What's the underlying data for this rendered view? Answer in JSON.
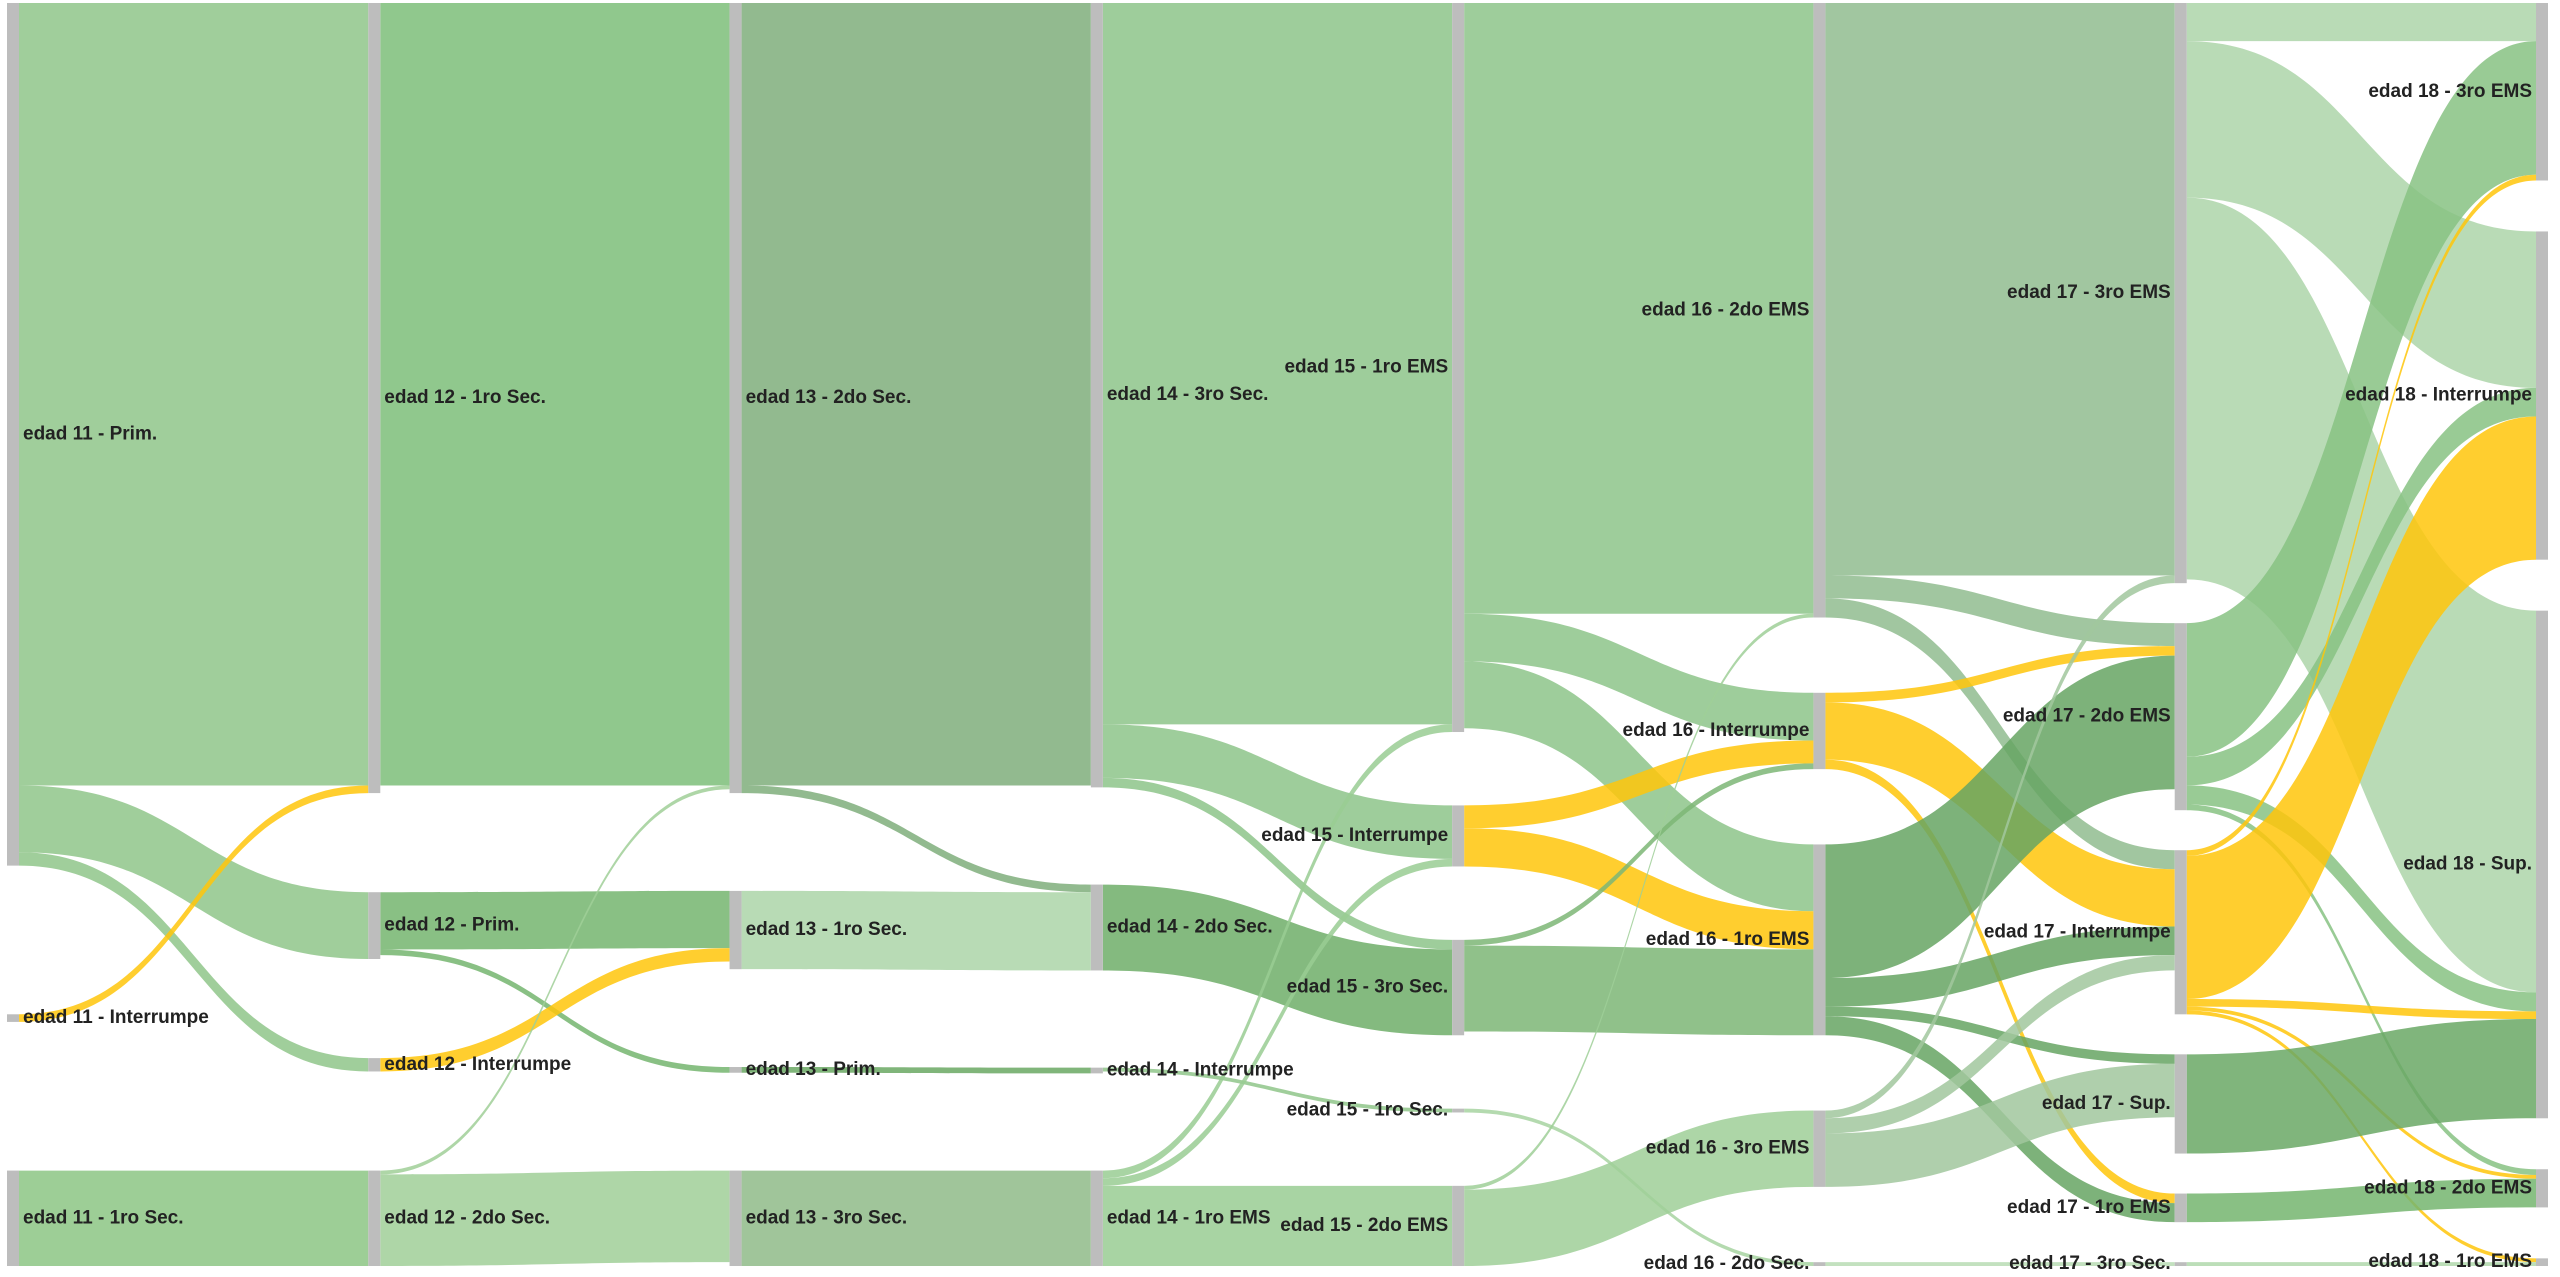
{
  "chart_data": {
    "type": "sankey",
    "nodes": [
      {
        "label": "edad 11 - Prim.",
        "color": "#8fc58a"
      },
      {
        "label": "edad 11 - Interrumpe",
        "color": "#ffc60b"
      },
      {
        "label": "edad 11 - 1ro Sec.",
        "color": "#8cc584"
      },
      {
        "label": "edad 12 - 1ro Sec.",
        "color": "#7dbe79"
      },
      {
        "label": "edad 12 - Prim.",
        "color": "#74b56e"
      },
      {
        "label": "edad 12 - Interrumpe",
        "color": "#ffc60b"
      },
      {
        "label": "edad 12 - 2do Sec.",
        "color": "#a0cf98"
      },
      {
        "label": "edad 13 - 2do Sec.",
        "color": "#7fae7b"
      },
      {
        "label": "edad 13 - 1ro Sec.",
        "color": "#acd5a8"
      },
      {
        "label": "edad 13 - Prim.",
        "color": "#6aa863"
      },
      {
        "label": "edad 13 - 3ro Sec.",
        "color": "#8fbb88"
      },
      {
        "label": "edad 14 - 3ro Sec.",
        "color": "#8dc48a"
      },
      {
        "label": "edad 14 - 2do Sec.",
        "color": "#6fae68"
      },
      {
        "label": "edad 14 - Interrumpe",
        "color": "#8fc58a"
      },
      {
        "label": "edad 14 - 1ro EMS",
        "color": "#99cc93"
      },
      {
        "label": "edad 15 - 1ro EMS",
        "color": "#8dc48a"
      },
      {
        "label": "edad 15 - Interrumpe",
        "color": "#ffc60b"
      },
      {
        "label": "edad 15 - 3ro Sec.",
        "color": "#7cb676"
      },
      {
        "label": "edad 15 - 1ro Sec.",
        "color": "#a7d3a1"
      },
      {
        "label": "edad 15 - 2do EMS",
        "color": "#9fcf98"
      },
      {
        "label": "edad 16 - 2do EMS",
        "color": "#91bc8f"
      },
      {
        "label": "edad 16 - Interrumpe",
        "color": "#ffc60b"
      },
      {
        "label": "edad 16 - 1ro EMS",
        "color": "#66a463"
      },
      {
        "label": "edad 16 - 3ro EMS",
        "color": "#a1c79d"
      },
      {
        "label": "edad 16 - 2do Sec.",
        "color": "#b9dcb4"
      },
      {
        "label": "edad 17 - 3ro EMS",
        "color": "#add5a9"
      },
      {
        "label": "edad 17 - 2do EMS",
        "color": "#87c282"
      },
      {
        "label": "edad 17 - Interrumpe",
        "color": "#ffc60b"
      },
      {
        "label": "edad 17 - Sup.",
        "color": "#6aa865"
      },
      {
        "label": "edad 17 - 1ro EMS",
        "color": "#74b56f"
      },
      {
        "label": "edad 17 - 3ro Sec.",
        "color": "#b0d8ab"
      },
      {
        "label": "edad 18 - 3ro EMS",
        "color": "#9cc998"
      },
      {
        "label": "edad 18 - Interrumpe",
        "color": "#ffc60b"
      },
      {
        "label": "edad 18 - Sup.",
        "color": "#96c991"
      },
      {
        "label": "edad 18 - 2do EMS",
        "color": "#8cc587"
      },
      {
        "label": "edad 18 - 1ro EMS",
        "color": "#ffc60b"
      }
    ],
    "links": [
      {
        "source": 0,
        "target": 3,
        "value": 410
      },
      {
        "source": 0,
        "target": 4,
        "value": 35
      },
      {
        "source": 0,
        "target": 5,
        "value": 7
      },
      {
        "source": 1,
        "target": 3,
        "value": 4
      },
      {
        "source": 2,
        "target": 6,
        "value": 50
      },
      {
        "source": 3,
        "target": 7,
        "value": 410
      },
      {
        "source": 4,
        "target": 8,
        "value": 30
      },
      {
        "source": 4,
        "target": 9,
        "value": 3
      },
      {
        "source": 5,
        "target": 8,
        "value": 7
      },
      {
        "source": 6,
        "target": 10,
        "value": 48
      },
      {
        "source": 6,
        "target": 7,
        "value": 2
      },
      {
        "source": 7,
        "target": 11,
        "value": 410
      },
      {
        "source": 7,
        "target": 12,
        "value": 4
      },
      {
        "source": 8,
        "target": 12,
        "value": 41
      },
      {
        "source": 9,
        "target": 13,
        "value": 3
      },
      {
        "source": 10,
        "target": 14,
        "value": 50
      },
      {
        "source": 11,
        "target": 15,
        "value": 378
      },
      {
        "source": 11,
        "target": 16,
        "value": 28
      },
      {
        "source": 11,
        "target": 17,
        "value": 5
      },
      {
        "source": 12,
        "target": 17,
        "value": 45
      },
      {
        "source": 13,
        "target": 18,
        "value": 2
      },
      {
        "source": 14,
        "target": 19,
        "value": 42
      },
      {
        "source": 14,
        "target": 15,
        "value": 4
      },
      {
        "source": 14,
        "target": 16,
        "value": 4
      },
      {
        "source": 15,
        "target": 20,
        "value": 320
      },
      {
        "source": 15,
        "target": 21,
        "value": 25
      },
      {
        "source": 15,
        "target": 22,
        "value": 35
      },
      {
        "source": 16,
        "target": 21,
        "value": 12
      },
      {
        "source": 16,
        "target": 22,
        "value": 20
      },
      {
        "source": 17,
        "target": 22,
        "value": 45
      },
      {
        "source": 17,
        "target": 21,
        "value": 3
      },
      {
        "source": 18,
        "target": 24,
        "value": 2
      },
      {
        "source": 19,
        "target": 23,
        "value": 40
      },
      {
        "source": 19,
        "target": 20,
        "value": 2
      },
      {
        "source": 20,
        "target": 25,
        "value": 300
      },
      {
        "source": 20,
        "target": 26,
        "value": 12
      },
      {
        "source": 20,
        "target": 27,
        "value": 10
      },
      {
        "source": 21,
        "target": 26,
        "value": 5
      },
      {
        "source": 21,
        "target": 27,
        "value": 30
      },
      {
        "source": 21,
        "target": 29,
        "value": 5
      },
      {
        "source": 22,
        "target": 26,
        "value": 70
      },
      {
        "source": 22,
        "target": 27,
        "value": 15
      },
      {
        "source": 22,
        "target": 29,
        "value": 10
      },
      {
        "source": 22,
        "target": 28,
        "value": 5
      },
      {
        "source": 23,
        "target": 25,
        "value": 4
      },
      {
        "source": 23,
        "target": 27,
        "value": 8
      },
      {
        "source": 23,
        "target": 28,
        "value": 28
      },
      {
        "source": 24,
        "target": 30,
        "value": 2
      },
      {
        "source": 25,
        "target": 31,
        "value": 20
      },
      {
        "source": 25,
        "target": 32,
        "value": 82
      },
      {
        "source": 25,
        "target": 33,
        "value": 200
      },
      {
        "source": 26,
        "target": 31,
        "value": 70
      },
      {
        "source": 26,
        "target": 32,
        "value": 15
      },
      {
        "source": 26,
        "target": 33,
        "value": 10
      },
      {
        "source": 26,
        "target": 34,
        "value": 3
      },
      {
        "source": 27,
        "target": 32,
        "value": 75
      },
      {
        "source": 27,
        "target": 31,
        "value": 3
      },
      {
        "source": 27,
        "target": 33,
        "value": 4
      },
      {
        "source": 27,
        "target": 34,
        "value": 2
      },
      {
        "source": 27,
        "target": 35,
        "value": 2
      },
      {
        "source": 28,
        "target": 33,
        "value": 52
      },
      {
        "source": 29,
        "target": 34,
        "value": 15
      },
      {
        "source": 30,
        "target": 35,
        "value": 2
      }
    ]
  }
}
